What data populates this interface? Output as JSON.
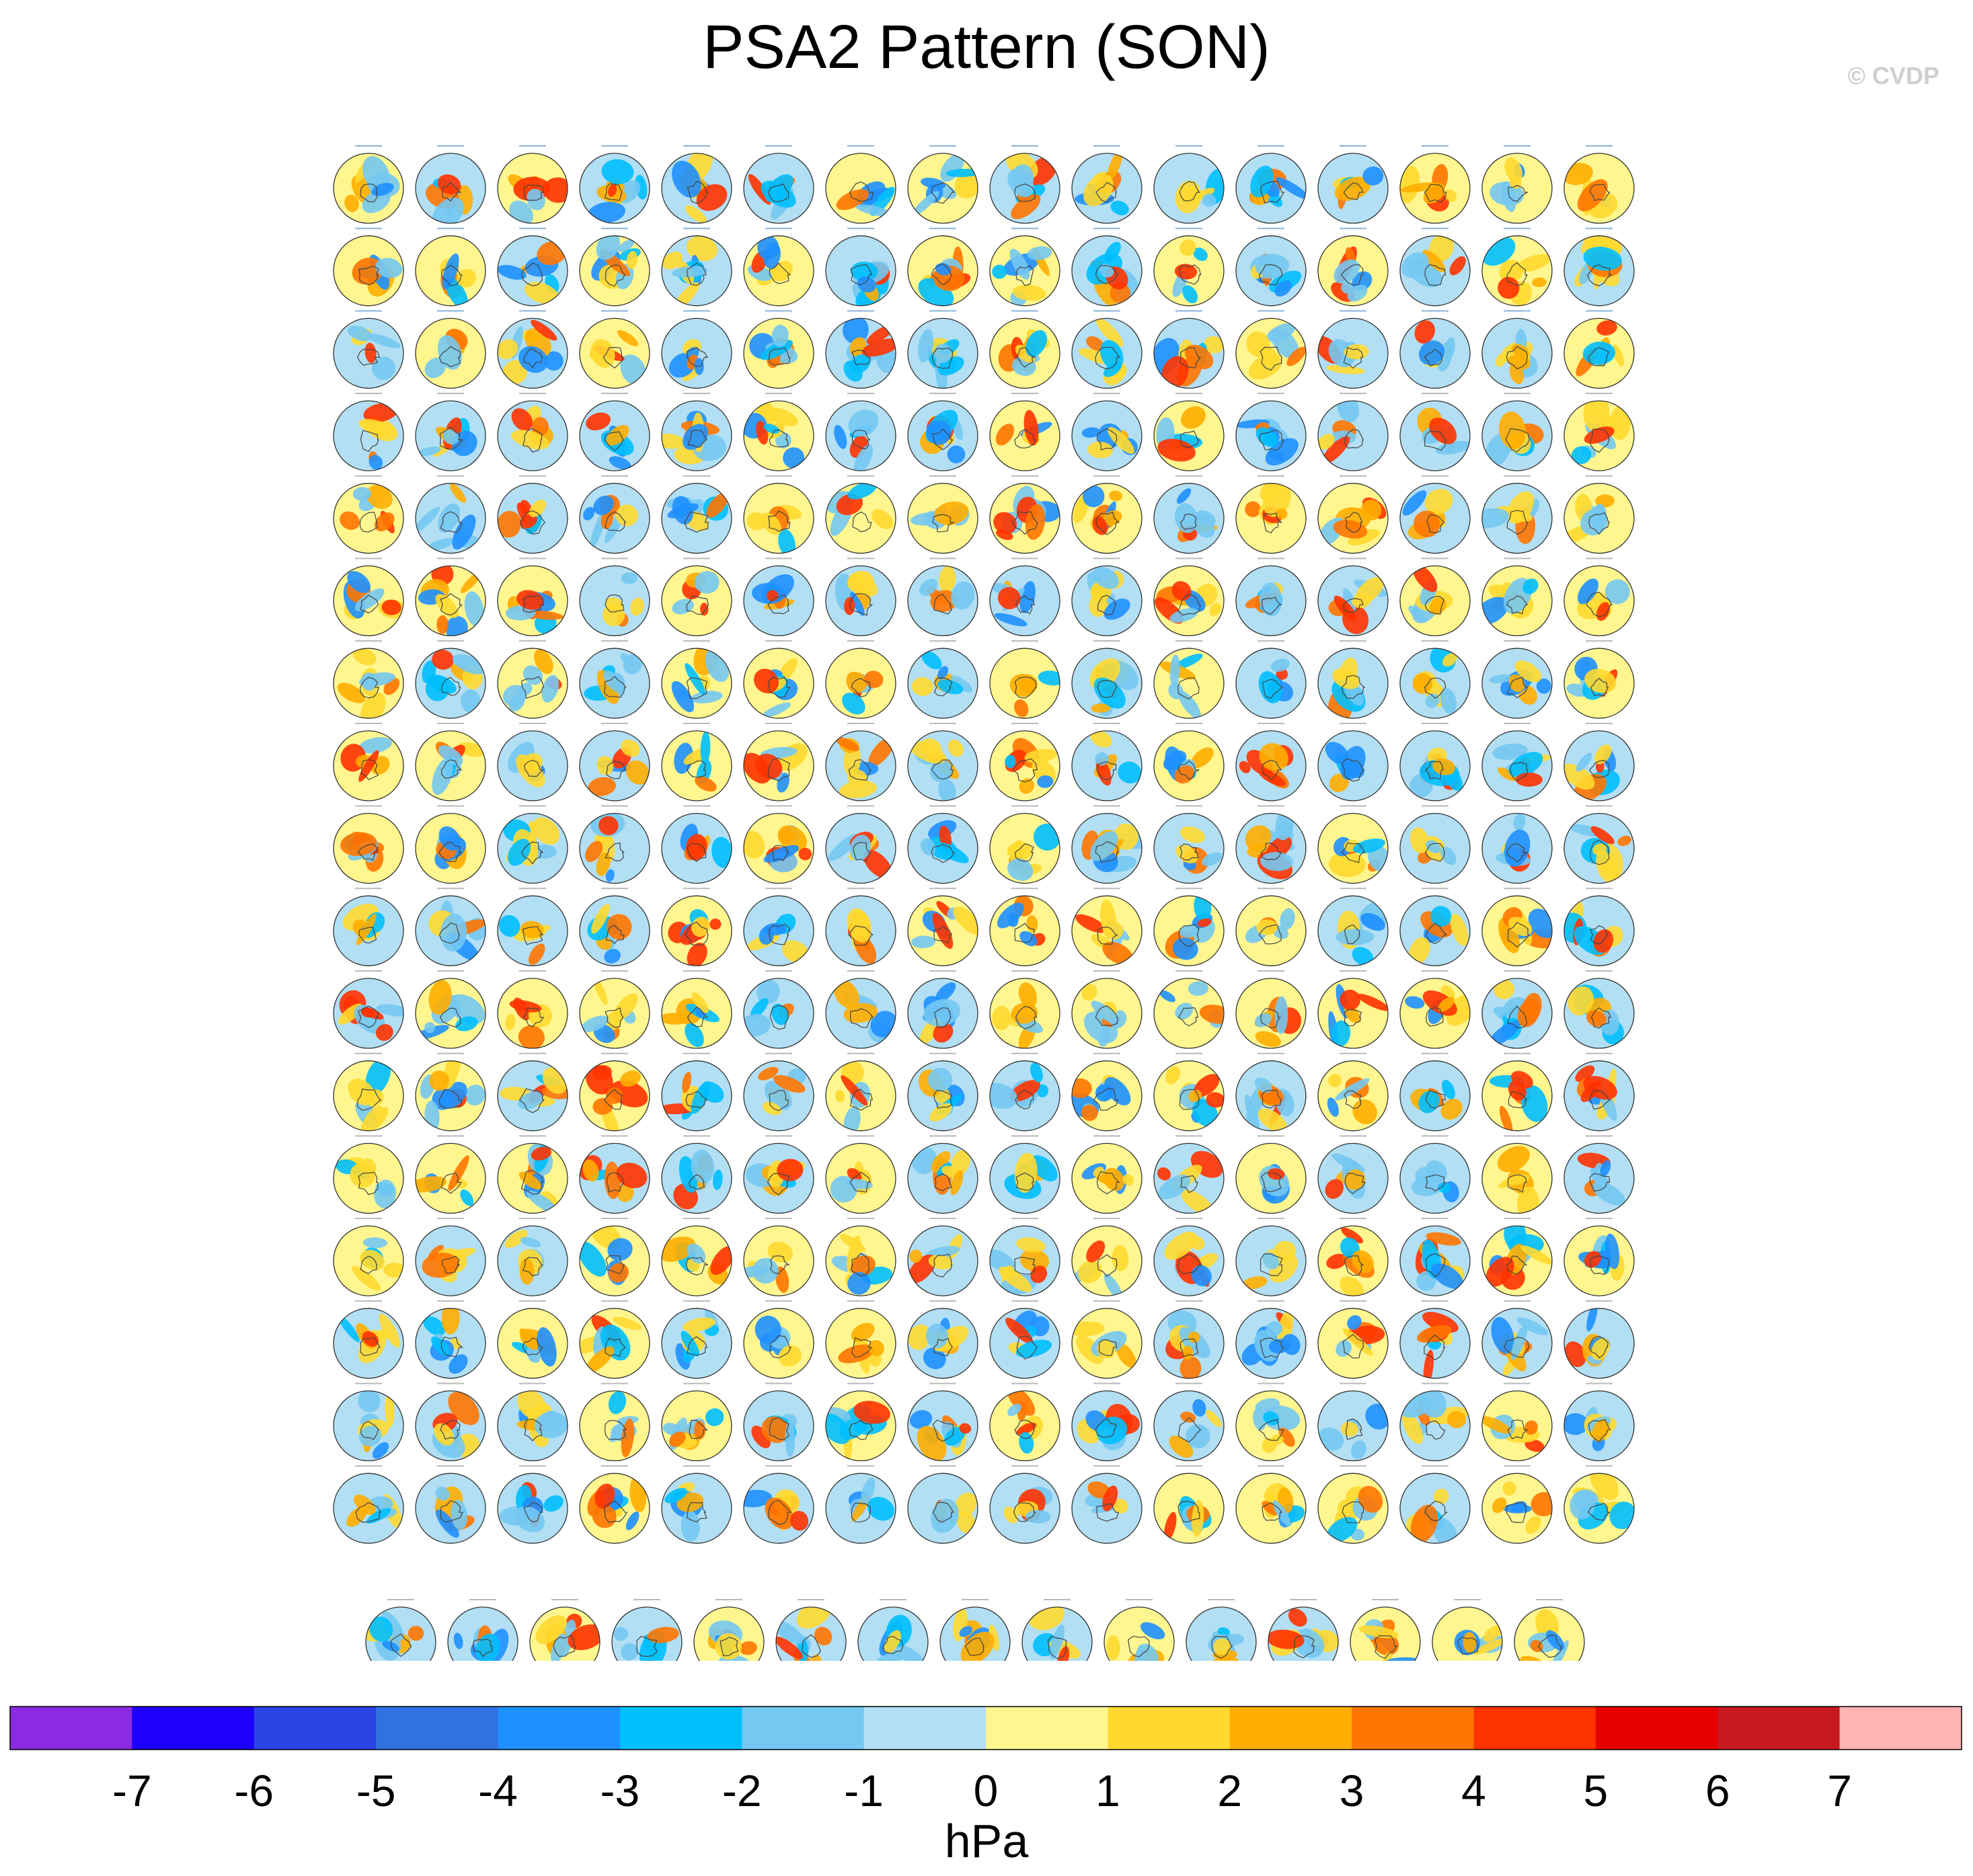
{
  "title": "PSA2 Pattern (SON)",
  "watermark": "© CVDP",
  "chart_data": {
    "type": "heatmap",
    "title": "PSA2 Pattern (SON)",
    "panel_grid": {
      "rows": 18,
      "columns_full": 16,
      "last_row_columns": 15,
      "panel_count": 287
    },
    "projection": "south-polar stereographic",
    "colorbar": {
      "label": "hPa",
      "tick_labels": [
        "-7",
        "-6",
        "-5",
        "-4",
        "-3",
        "-2",
        "-1",
        "0",
        "1",
        "2",
        "3",
        "4",
        "5",
        "6",
        "7"
      ],
      "levels": [
        -7,
        -6,
        -5,
        -4,
        -3,
        -2,
        -1,
        0,
        1,
        2,
        3,
        4,
        5,
        6,
        7
      ],
      "colors": [
        "#8a2be2",
        "#1e00ff",
        "#2b44e6",
        "#3271e0",
        "#1e90ff",
        "#00bfff",
        "#74c8f2",
        "#b2dff3",
        "#fff68f",
        "#ffd92f",
        "#ffae00",
        "#ff7500",
        "#ff3300",
        "#e60000",
        "#c8191e",
        "#ffb3b3"
      ]
    }
  }
}
